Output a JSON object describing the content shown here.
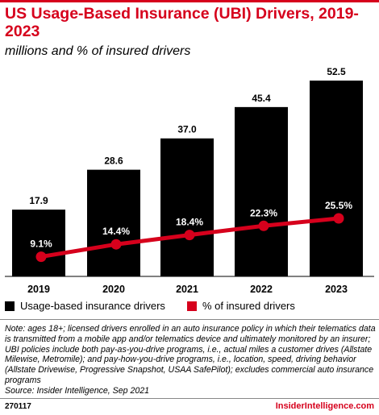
{
  "header": {
    "title": "US Usage-Based Insurance (UBI) Drivers, 2019-2023",
    "subtitle": "millions and % of insured drivers"
  },
  "colors": {
    "accent": "#d6001c",
    "bar": "#000000"
  },
  "chart_data": {
    "type": "bar",
    "categories": [
      "2019",
      "2020",
      "2021",
      "2022",
      "2023"
    ],
    "series": [
      {
        "name": "Usage-based insurance drivers",
        "type": "bar",
        "values": [
          17.9,
          28.6,
          37.0,
          45.4,
          52.5
        ],
        "labels": [
          "17.9",
          "28.6",
          "37.0",
          "45.4",
          "52.5"
        ]
      },
      {
        "name": "% of insured drivers",
        "type": "line",
        "values": [
          9.1,
          14.4,
          18.4,
          22.3,
          25.5
        ],
        "labels": [
          "9.1%",
          "14.4%",
          "18.4%",
          "22.3%",
          "25.5%"
        ]
      }
    ],
    "legend_position": "bottom"
  },
  "legend": {
    "bars_label": "Usage-based insurance drivers",
    "line_label": "% of insured drivers"
  },
  "footer": {
    "note": "Note: ages 18+; licensed drivers enrolled in an auto insurance policy in which their telematics data is transmitted from a mobile app and/or telematics device and ultimately monitored by an insurer; UBI policies include both pay-as-you-drive programs, i.e., actual miles a customer drives (Allstate Milewise, Metromile); and pay-how-you-drive programs, i.e., location, speed, driving behavior (Allstate Drivewise, Progressive Snapshot, USAA SafePilot); excludes commercial auto insurance programs",
    "source": "Source: Insider Intelligence, Sep 2021",
    "chart_id": "270117",
    "brand": "InsiderIntelligence.com"
  }
}
